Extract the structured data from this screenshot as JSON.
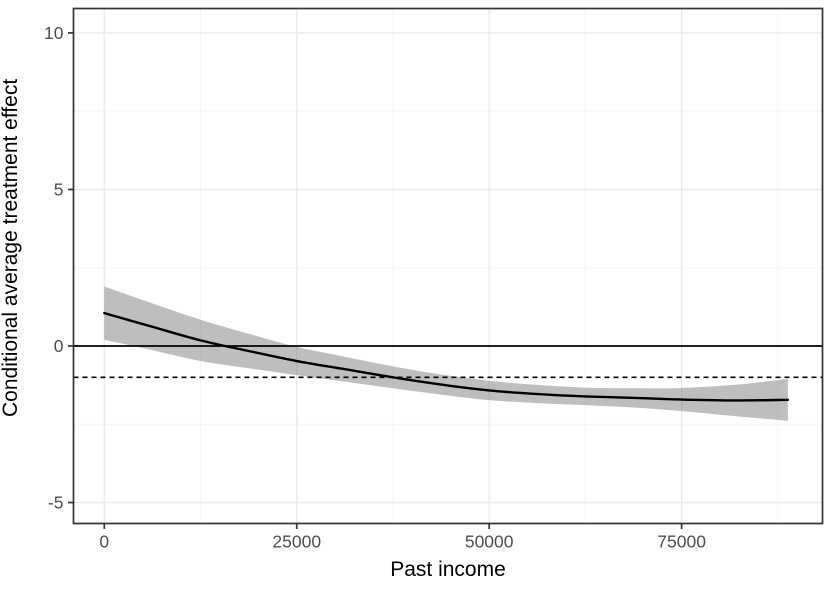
{
  "chart_data": {
    "type": "line",
    "title": "",
    "xlabel": "Past income",
    "ylabel": "Conditional average treatment effect",
    "xlim": [
      -4000,
      93300
    ],
    "ylim": [
      -5.67,
      10.78
    ],
    "grid": "on",
    "legend": "none",
    "x_tick_values": [
      0,
      25000,
      50000,
      75000
    ],
    "x_tick_labels": [
      "0",
      "25000",
      "50000",
      "75000"
    ],
    "x_minor_gridlines": [
      12500,
      37500,
      62500,
      87500
    ],
    "y_tick_values": [
      -5,
      0,
      5,
      10
    ],
    "y_tick_labels": [
      "-5",
      "0",
      "5",
      "10"
    ],
    "y_minor_gridlines": [
      -2.5,
      2.5,
      7.5
    ],
    "reference_lines": [
      {
        "y": 0,
        "style": "solid"
      },
      {
        "y": -1,
        "style": "dashed"
      }
    ],
    "series": [
      {
        "name": "conditional-average-treatment-effect-smooth",
        "x": [
          0,
          6000,
          12500,
          18750,
          25000,
          31000,
          37500,
          44000,
          50000,
          56000,
          62500,
          69000,
          75000,
          82000,
          88800
        ],
        "y": [
          1.05,
          0.63,
          0.18,
          -0.16,
          -0.48,
          -0.73,
          -1.0,
          -1.24,
          -1.42,
          -1.53,
          -1.61,
          -1.66,
          -1.71,
          -1.74,
          -1.72
        ],
        "ci_upper": [
          1.9,
          1.38,
          0.84,
          0.39,
          -0.03,
          -0.33,
          -0.65,
          -0.92,
          -1.11,
          -1.24,
          -1.33,
          -1.35,
          -1.34,
          -1.24,
          -1.05
        ],
        "ci_lower": [
          0.2,
          -0.12,
          -0.48,
          -0.71,
          -0.93,
          -1.13,
          -1.35,
          -1.56,
          -1.73,
          -1.82,
          -1.89,
          -1.97,
          -2.08,
          -2.24,
          -2.39
        ]
      }
    ]
  },
  "colors": {
    "background": "#ffffff",
    "panel_background": "#ffffff",
    "panel_border": "#333333",
    "grid_major": "#e9e9e9",
    "grid_minor": "#f5f5f5",
    "ribbon_base": "#6e6e6e",
    "ribbon_opacity": 0.45,
    "line": "#000000",
    "reference_line": "#000000",
    "tick_mark": "#333333",
    "tick_label": "#4d4d4d",
    "axis_title": "#000000"
  }
}
